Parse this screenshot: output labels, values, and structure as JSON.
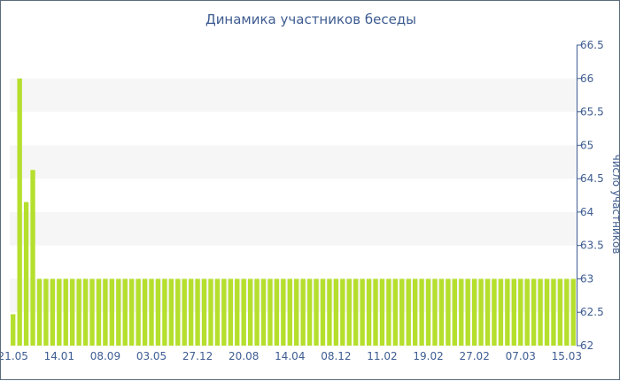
{
  "chart_data": {
    "type": "bar",
    "title": "Динамика участников беседы",
    "xlabel": "",
    "ylabel": "число участников",
    "ylim": [
      62,
      66.5
    ],
    "yticks": [
      62,
      62.5,
      63,
      63.5,
      64,
      64.5,
      65,
      65.5,
      66,
      66.5
    ],
    "ytick_labels": [
      "62",
      "62.5",
      "63",
      "63.5",
      "64",
      "64.5",
      "65",
      "65.5",
      "66",
      "66.5"
    ],
    "xtick_labels": [
      "21.05",
      "14.01",
      "08.09",
      "03.05",
      "27.12",
      "20.08",
      "14.04",
      "08.12",
      "11.02",
      "19.02",
      "27.02",
      "07.03",
      "15.03"
    ],
    "xtick_positions": [
      0,
      7,
      14,
      21,
      28,
      35,
      42,
      49,
      56,
      63,
      70,
      77,
      84
    ],
    "grid": "horizontal bands",
    "axis_position": "right",
    "bar_color": "#b5df2d",
    "values": [
      62.47,
      66.0,
      64.15,
      64.63,
      63,
      63,
      63,
      63,
      63,
      63,
      63,
      63,
      63,
      63,
      63,
      63,
      63,
      63,
      63,
      63,
      63,
      63,
      63,
      63,
      63,
      63,
      63,
      63,
      63,
      63,
      63,
      63,
      63,
      63,
      63,
      63,
      63,
      63,
      63,
      63,
      63,
      63,
      63,
      63,
      63,
      63,
      63,
      63,
      63,
      63,
      63,
      63,
      63,
      63,
      63,
      63,
      63,
      63,
      63,
      63,
      63,
      63,
      63,
      63,
      63,
      63,
      63,
      63,
      63,
      63,
      63,
      63,
      63,
      63,
      63,
      63,
      63,
      63,
      63,
      63,
      63,
      63,
      63,
      63,
      63,
      63
    ]
  }
}
